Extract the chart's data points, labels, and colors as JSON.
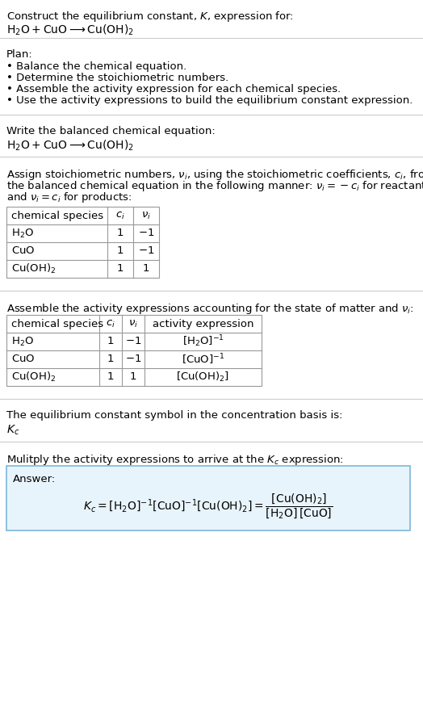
{
  "title_line1": "Construct the equilibrium constant, $K$, expression for:",
  "title_line2": "$\\mathrm{H_2O + CuO \\longrightarrow Cu(OH)_2}$",
  "plan_header": "Plan:",
  "plan_items": [
    "• Balance the chemical equation.",
    "• Determine the stoichiometric numbers.",
    "• Assemble the activity expression for each chemical species.",
    "• Use the activity expressions to build the equilibrium constant expression."
  ],
  "balanced_eq_header": "Write the balanced chemical equation:",
  "balanced_eq": "$\\mathrm{H_2O + CuO \\longrightarrow Cu(OH)_2}$",
  "stoich_intro_lines": [
    "Assign stoichiometric numbers, $\\nu_i$, using the stoichiometric coefficients, $c_i$, from",
    "the balanced chemical equation in the following manner: $\\nu_i = -c_i$ for reactants",
    "and $\\nu_i = c_i$ for products:"
  ],
  "table1_headers": [
    "chemical species",
    "$c_i$",
    "$\\nu_i$"
  ],
  "table1_rows": [
    [
      "$\\mathrm{H_2O}$",
      "1",
      "$-1$"
    ],
    [
      "$\\mathrm{CuO}$",
      "1",
      "$-1$"
    ],
    [
      "$\\mathrm{Cu(OH)_2}$",
      "1",
      "$1$"
    ]
  ],
  "assemble_intro": "Assemble the activity expressions accounting for the state of matter and $\\nu_i$:",
  "table2_headers": [
    "chemical species",
    "$c_i$",
    "$\\nu_i$",
    "activity expression"
  ],
  "table2_rows": [
    [
      "$\\mathrm{H_2O}$",
      "1",
      "$-1$",
      "$[\\mathrm{H_2O}]^{-1}$"
    ],
    [
      "$\\mathrm{CuO}$",
      "1",
      "$-1$",
      "$[\\mathrm{CuO}]^{-1}$"
    ],
    [
      "$\\mathrm{Cu(OH)_2}$",
      "1",
      "$1$",
      "$[\\mathrm{Cu(OH)_2}]$"
    ]
  ],
  "kc_text": "The equilibrium constant symbol in the concentration basis is:",
  "kc_symbol": "$K_c$",
  "multiply_text": "Mulitply the activity expressions to arrive at the $K_c$ expression:",
  "answer_label": "Answer:",
  "answer_eq_left": "$K_c = [\\mathrm{H_2O}]^{-1}\\,[\\mathrm{CuO}]^{-1}\\,[\\mathrm{Cu(OH)_2}] = $",
  "answer_frac_num": "$[\\mathrm{Cu(OH)_2}]$",
  "answer_frac_den": "$[\\mathrm{H_2O}]\\,[\\mathrm{CuO}]$",
  "bg_color": "#ffffff",
  "text_color": "#000000",
  "table_border_color": "#999999",
  "sep_line_color": "#cccccc",
  "answer_box_bg": "#e8f4fc",
  "answer_box_border": "#7ab8d9",
  "font_size": 9.5,
  "fig_width": 5.24,
  "fig_height": 8.93
}
